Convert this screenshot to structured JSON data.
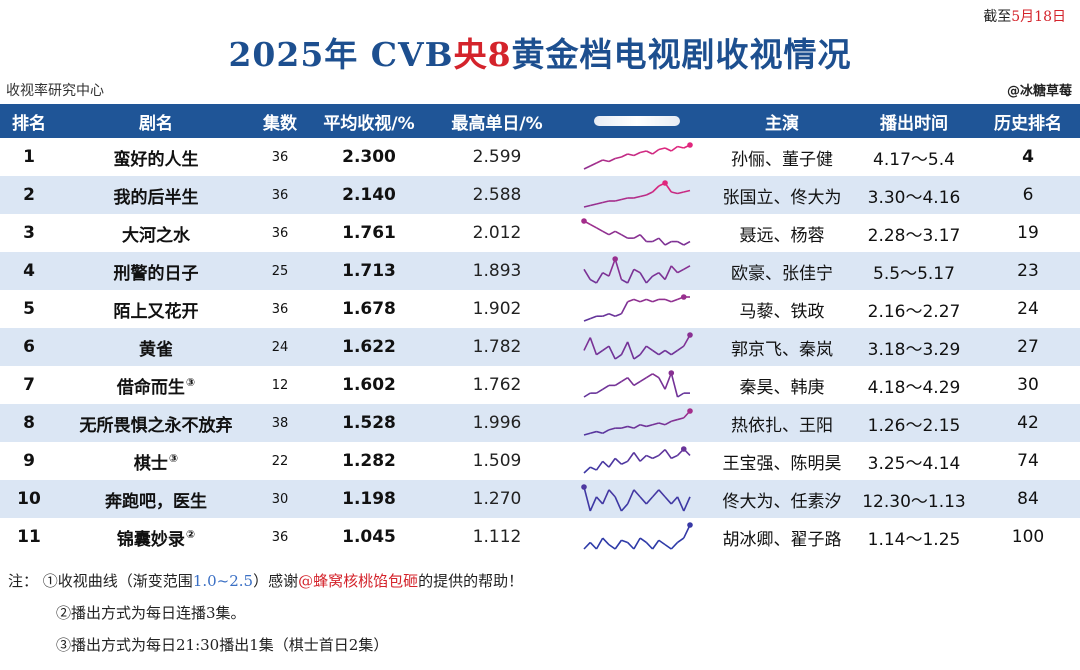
{
  "header": {
    "date_prefix": "截至",
    "date_value": "5月18日",
    "title_part1": "2025年 CVB",
    "title_part2": "央8",
    "title_part3": "黄金档电视剧收视情况",
    "source": "收视率研究中心",
    "credit": "@冰糖草莓"
  },
  "chart_data": {
    "type": "table",
    "columns": [
      "排名",
      "剧名",
      "集数",
      "平均收视/%",
      "最高单日/%",
      "",
      "主演",
      "播出时间",
      "历史排名"
    ],
    "rows": [
      {
        "rank": "1",
        "title": "蛮好的人生",
        "mark": "",
        "episodes": "36",
        "avg": "2.300",
        "best": "2.599",
        "cast": "孙俪、董子健",
        "period": "4.17～5.4",
        "hist": "4",
        "curve": [
          1.8,
          1.9,
          2.0,
          2.1,
          2.05,
          2.15,
          2.2,
          2.3,
          2.25,
          2.35,
          2.4,
          2.3,
          2.45,
          2.5,
          2.4,
          2.55,
          2.5,
          2.6
        ]
      },
      {
        "rank": "2",
        "title": "我的后半生",
        "mark": "",
        "episodes": "36",
        "avg": "2.140",
        "best": "2.588",
        "cast": "张国立、佟大为",
        "period": "3.30～4.16",
        "hist": "6",
        "curve": [
          1.8,
          1.85,
          1.9,
          1.95,
          2.0,
          2.0,
          2.05,
          2.1,
          2.1,
          2.15,
          2.2,
          2.3,
          2.5,
          2.6,
          2.3,
          2.25,
          2.3,
          2.35
        ]
      },
      {
        "rank": "3",
        "title": "大河之水",
        "mark": "",
        "episodes": "36",
        "avg": "1.761",
        "best": "2.012",
        "cast": "聂远、杨蓉",
        "period": "2.28～3.17",
        "hist": "19",
        "curve": [
          2.0,
          1.95,
          1.9,
          1.85,
          1.8,
          1.85,
          1.8,
          1.75,
          1.75,
          1.8,
          1.7,
          1.7,
          1.75,
          1.65,
          1.7,
          1.7,
          1.65,
          1.7
        ]
      },
      {
        "rank": "4",
        "title": "刑警的日子",
        "mark": "",
        "episodes": "25",
        "avg": "1.713",
        "best": "1.893",
        "cast": "欧豪、张佳宁",
        "period": "5.5～5.17",
        "hist": "23",
        "curve": [
          1.75,
          1.6,
          1.55,
          1.7,
          1.65,
          1.9,
          1.6,
          1.55,
          1.75,
          1.7,
          1.55,
          1.65,
          1.7,
          1.6,
          1.8,
          1.7,
          1.75,
          1.8
        ]
      },
      {
        "rank": "5",
        "title": "陌上又花开",
        "mark": "",
        "episodes": "36",
        "avg": "1.678",
        "best": "1.902",
        "cast": "马藜、铁政",
        "period": "2.16～2.27",
        "hist": "24",
        "curve": [
          1.4,
          1.45,
          1.5,
          1.5,
          1.55,
          1.5,
          1.55,
          1.8,
          1.85,
          1.8,
          1.85,
          1.8,
          1.85,
          1.85,
          1.8,
          1.85,
          1.9,
          1.9
        ]
      },
      {
        "rank": "6",
        "title": "黄雀",
        "mark": "",
        "episodes": "24",
        "avg": "1.622",
        "best": "1.782",
        "cast": "郭京飞、秦岚",
        "period": "3.18～3.29",
        "hist": "27",
        "curve": [
          1.6,
          1.75,
          1.55,
          1.6,
          1.65,
          1.5,
          1.55,
          1.7,
          1.5,
          1.55,
          1.65,
          1.6,
          1.55,
          1.6,
          1.55,
          1.6,
          1.65,
          1.78
        ]
      },
      {
        "rank": "7",
        "title": "借命而生",
        "mark": "③",
        "episodes": "12",
        "avg": "1.602",
        "best": "1.762",
        "cast": "秦昊、韩庚",
        "period": "4.18～4.29",
        "hist": "30",
        "curve": [
          1.45,
          1.5,
          1.5,
          1.55,
          1.6,
          1.6,
          1.65,
          1.7,
          1.6,
          1.65,
          1.7,
          1.75,
          1.7,
          1.55,
          1.76,
          1.45,
          1.5,
          1.5
        ]
      },
      {
        "rank": "8",
        "title": "无所畏惧之永不放弃",
        "mark": "",
        "episodes": "38",
        "avg": "1.528",
        "best": "1.996",
        "cast": "热依扎、王阳",
        "period": "1.26～2.15",
        "hist": "42",
        "curve": [
          1.3,
          1.35,
          1.4,
          1.35,
          1.45,
          1.5,
          1.5,
          1.55,
          1.5,
          1.6,
          1.55,
          1.6,
          1.65,
          1.6,
          1.7,
          1.75,
          1.8,
          2.0
        ]
      },
      {
        "rank": "9",
        "title": "棋士",
        "mark": "③",
        "episodes": "22",
        "avg": "1.282",
        "best": "1.509",
        "cast": "王宝强、陈明昊",
        "period": "3.25～4.14",
        "hist": "74",
        "curve": [
          1.1,
          1.2,
          1.15,
          1.3,
          1.2,
          1.35,
          1.25,
          1.3,
          1.45,
          1.3,
          1.4,
          1.35,
          1.4,
          1.5,
          1.35,
          1.4,
          1.51,
          1.4
        ]
      },
      {
        "rank": "10",
        "title": "奔跑吧，医生",
        "mark": "",
        "episodes": "30",
        "avg": "1.198",
        "best": "1.270",
        "cast": "佟大为、任素汐",
        "period": "12.30～1.13",
        "hist": "84",
        "curve": [
          1.27,
          1.1,
          1.2,
          1.15,
          1.25,
          1.2,
          1.1,
          1.15,
          1.25,
          1.2,
          1.15,
          1.2,
          1.25,
          1.2,
          1.15,
          1.2,
          1.1,
          1.2
        ]
      },
      {
        "rank": "11",
        "title": "锦囊妙录",
        "mark": "②",
        "episodes": "36",
        "avg": "1.045",
        "best": "1.112",
        "cast": "胡冰卿、翟子路",
        "period": "1.14～1.25",
        "hist": "100",
        "curve": [
          1.0,
          1.03,
          1.0,
          1.05,
          1.02,
          1.0,
          1.04,
          1.03,
          1.0,
          1.05,
          1.03,
          1.0,
          1.04,
          1.02,
          1.0,
          1.03,
          1.05,
          1.11
        ]
      }
    ],
    "curve_range": [
      1.0,
      2.5
    ],
    "colors": {
      "low": "#2b3aa8",
      "high": "#e0277d",
      "header_bg": "#1f5597",
      "stripe": "#dbe6f4"
    }
  },
  "notes": {
    "label": "注：",
    "n1_a": "①收视曲线（渐变范围",
    "n1_range": "1.0~2.5",
    "n1_b": "）感谢",
    "n1_thanks": "@蜂窝核桃馅包砸",
    "n1_c": "的提供的帮助！",
    "n2": "②播出方式为每日连播3集。",
    "n3": "③播出方式为每日21:30播出1集（棋士首日2集）"
  }
}
